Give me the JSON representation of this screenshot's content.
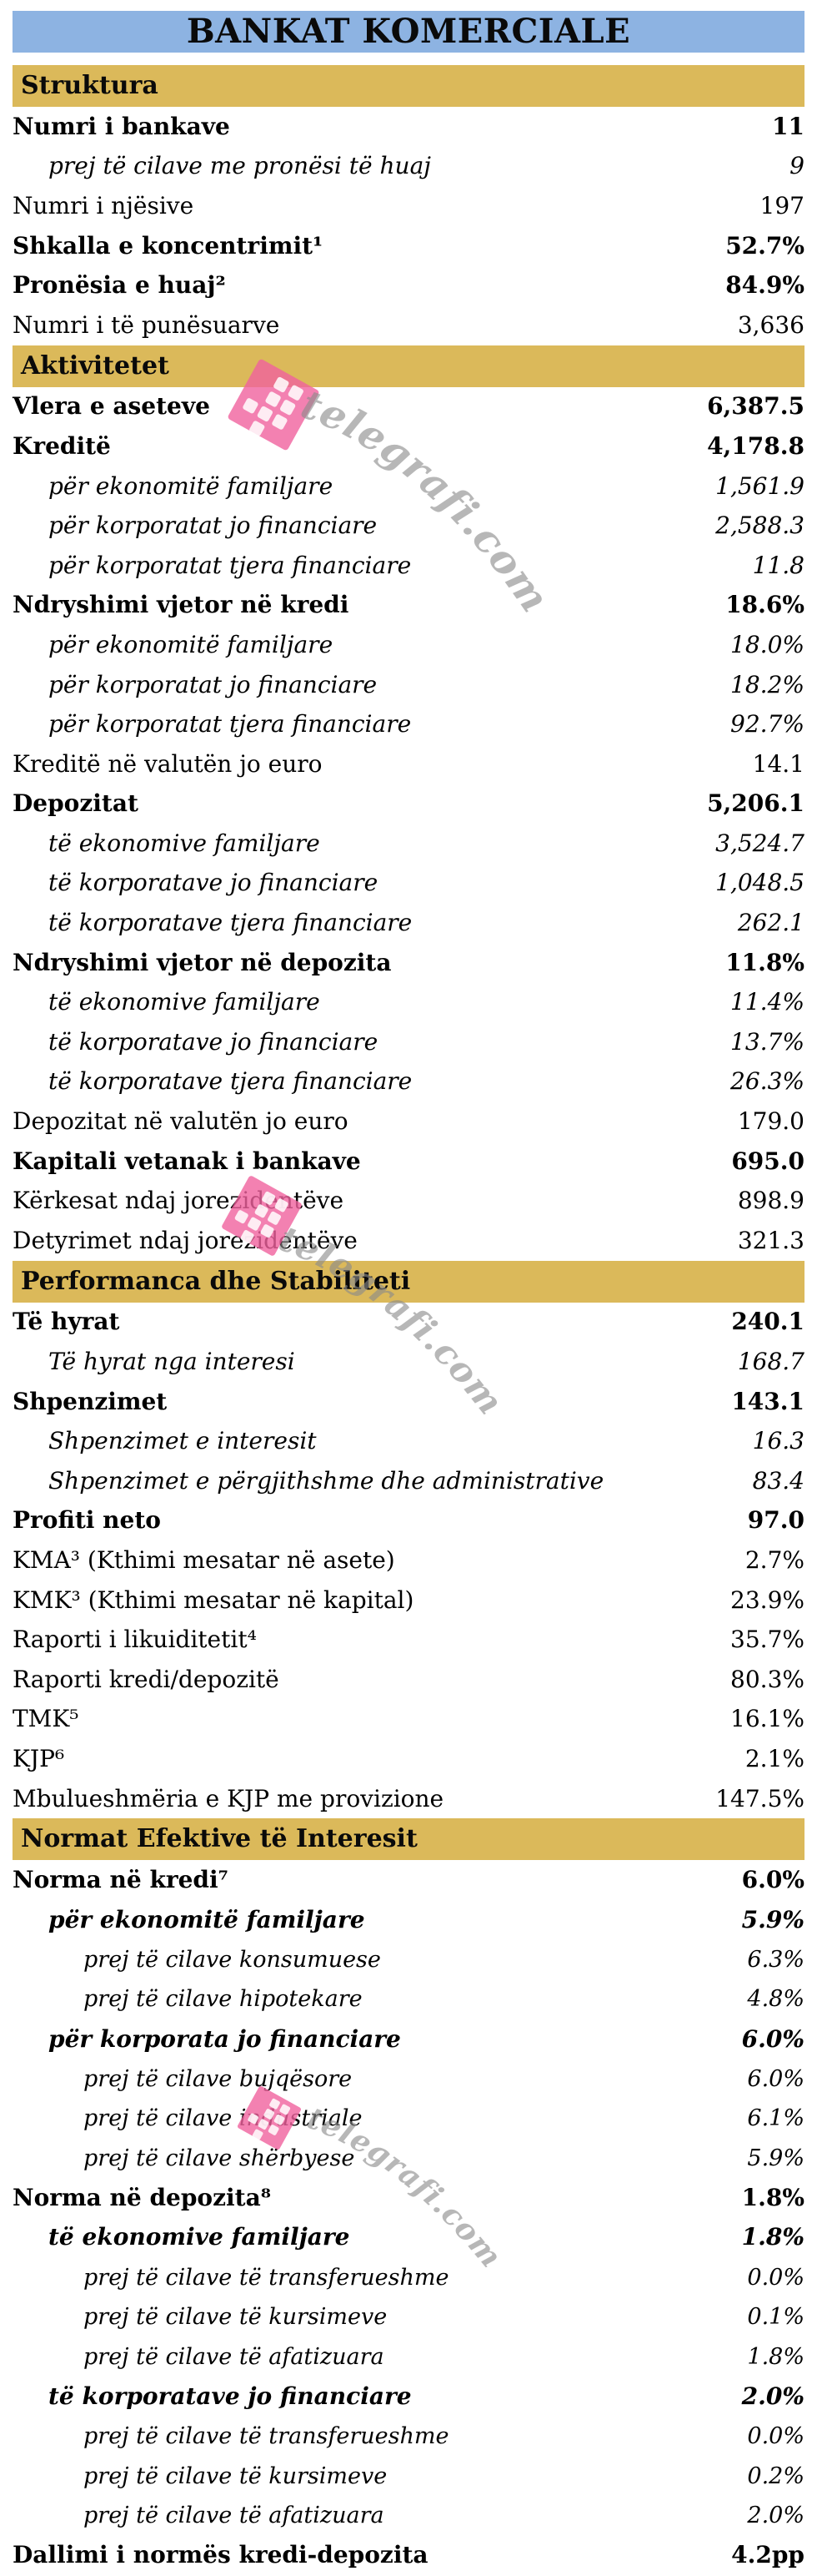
{
  "title": "BANKAT KOMERCIALE",
  "watermark": {
    "text": "telegrafi.com"
  },
  "colors": {
    "title_band": "#8db3e2",
    "section_band": "#dbb95a",
    "watermark_pink": "#f0619e",
    "watermark_gray": "#8a8a8a"
  },
  "sections": [
    {
      "header": "Struktura",
      "rows": [
        {
          "label": "Numri i bankave",
          "value": "11",
          "em": "bold",
          "indent": 0
        },
        {
          "label": "prej të cilave me pronësi të huaj",
          "value": "9",
          "em": "italic",
          "indent": 1
        },
        {
          "label": "Numri i njësive",
          "value": "197",
          "em": "plain",
          "indent": 0
        },
        {
          "label": "Shkalla e koncentrimit¹",
          "value": "52.7%",
          "em": "bold",
          "indent": 0
        },
        {
          "label": "Pronësia e huaj²",
          "value": "84.9%",
          "em": "bold",
          "indent": 0
        },
        {
          "label": "Numri i të punësuarve",
          "value": "3,636",
          "em": "plain",
          "indent": 0
        }
      ]
    },
    {
      "header": "Aktivitetet",
      "rows": [
        {
          "label": "Vlera e aseteve",
          "value": "6,387.5",
          "em": "bold",
          "indent": 0
        },
        {
          "label": "Kreditë",
          "value": "4,178.8",
          "em": "bold",
          "indent": 0
        },
        {
          "label": "për ekonomitë familjare",
          "value": "1,561.9",
          "em": "italic",
          "indent": 1
        },
        {
          "label": "për korporatat jo financiare",
          "value": "2,588.3",
          "em": "italic",
          "indent": 1
        },
        {
          "label": "për korporatat tjera financiare",
          "value": "11.8",
          "em": "italic",
          "indent": 1
        },
        {
          "label": "Ndryshimi vjetor në kredi",
          "value": "18.6%",
          "em": "bold",
          "indent": 0
        },
        {
          "label": "për ekonomitë familjare",
          "value": "18.0%",
          "em": "italic",
          "indent": 1
        },
        {
          "label": "për korporatat jo financiare",
          "value": "18.2%",
          "em": "italic",
          "indent": 1
        },
        {
          "label": "për korporatat tjera financiare",
          "value": "92.7%",
          "em": "italic",
          "indent": 1
        },
        {
          "label": "Kreditë në valutën jo euro",
          "value": "14.1",
          "em": "plain",
          "indent": 0
        },
        {
          "label": "Depozitat",
          "value": "5,206.1",
          "em": "bold",
          "indent": 0
        },
        {
          "label": "të ekonomive familjare",
          "value": "3,524.7",
          "em": "italic",
          "indent": 1
        },
        {
          "label": "të korporatave jo financiare",
          "value": "1,048.5",
          "em": "italic",
          "indent": 1
        },
        {
          "label": "të korporatave tjera financiare",
          "value": "262.1",
          "em": "italic",
          "indent": 1
        },
        {
          "label": "Ndryshimi vjetor në depozita",
          "value": "11.8%",
          "em": "bold",
          "indent": 0
        },
        {
          "label": "të ekonomive familjare",
          "value": "11.4%",
          "em": "italic",
          "indent": 1
        },
        {
          "label": "të korporatave jo financiare",
          "value": "13.7%",
          "em": "italic",
          "indent": 1
        },
        {
          "label": "të korporatave tjera financiare",
          "value": "26.3%",
          "em": "italic",
          "indent": 1
        },
        {
          "label": "Depozitat në valutën jo euro",
          "value": "179.0",
          "em": "plain",
          "indent": 0
        },
        {
          "label": "Kapitali vetanak i bankave",
          "value": "695.0",
          "em": "bold",
          "indent": 0
        },
        {
          "label": "Kërkesat ndaj jorezidentëve",
          "value": "898.9",
          "em": "plain",
          "indent": 0
        },
        {
          "label": "Detyrimet ndaj jorezidentëve",
          "value": "321.3",
          "em": "plain",
          "indent": 0
        }
      ]
    },
    {
      "header": "Performanca dhe Stabiliteti",
      "rows": [
        {
          "label": "Të hyrat",
          "value": "240.1",
          "em": "bold",
          "indent": 0
        },
        {
          "label": "Të hyrat nga interesi",
          "value": "168.7",
          "em": "italic",
          "indent": 1
        },
        {
          "label": "Shpenzimet",
          "value": "143.1",
          "em": "bold",
          "indent": 0
        },
        {
          "label": "Shpenzimet e interesit",
          "value": "16.3",
          "em": "italic",
          "indent": 1
        },
        {
          "label": "Shpenzimet e përgjithshme dhe administrative",
          "value": "83.4",
          "em": "italic",
          "indent": 1
        },
        {
          "label": "Profiti neto",
          "value": "97.0",
          "em": "bold",
          "indent": 0
        },
        {
          "label": "KMA³ (Kthimi mesatar në asete)",
          "value": "2.7%",
          "em": "plain",
          "indent": 0
        },
        {
          "label": "KMK³ (Kthimi mesatar në kapital)",
          "value": "23.9%",
          "em": "plain",
          "indent": 0
        },
        {
          "label": "Raporti i likuiditetit⁴",
          "value": "35.7%",
          "em": "plain",
          "indent": 0
        },
        {
          "label": "Raporti kredi/depozitë",
          "value": "80.3%",
          "em": "plain",
          "indent": 0
        },
        {
          "label": "TMK⁵",
          "value": "16.1%",
          "em": "plain",
          "indent": 0
        },
        {
          "label": "KJP⁶",
          "value": "2.1%",
          "em": "plain",
          "indent": 0
        },
        {
          "label": "Mbulueshmëria e KJP me provizione",
          "value": "147.5%",
          "em": "plain",
          "indent": 0
        }
      ]
    },
    {
      "header": "Normat Efektive të Interesit",
      "rows": [
        {
          "label": "Norma në kredi⁷",
          "value": "6.0%",
          "em": "bold",
          "indent": 0
        },
        {
          "label": "për ekonomitë familjare",
          "value": "5.9%",
          "em": "bolditalic",
          "indent": 1
        },
        {
          "label": "prej të cilave konsumuese",
          "value": "6.3%",
          "em": "italic",
          "indent": 2
        },
        {
          "label": "prej të cilave hipotekare",
          "value": "4.8%",
          "em": "italic",
          "indent": 2
        },
        {
          "label": "për korporata jo financiare",
          "value": "6.0%",
          "em": "bolditalic",
          "indent": 1
        },
        {
          "label": "prej të cilave bujqësore",
          "value": "6.0%",
          "em": "italic",
          "indent": 2
        },
        {
          "label": "prej të cilave industriale",
          "value": "6.1%",
          "em": "italic",
          "indent": 2
        },
        {
          "label": "prej të cilave shërbyese",
          "value": "5.9%",
          "em": "italic",
          "indent": 2
        },
        {
          "label": "Norma në depozita⁸",
          "value": "1.8%",
          "em": "bold",
          "indent": 0
        },
        {
          "label": "të ekonomive familjare",
          "value": "1.8%",
          "em": "bolditalic",
          "indent": 1
        },
        {
          "label": "prej të cilave të transferueshme",
          "value": "0.0%",
          "em": "italic",
          "indent": 2
        },
        {
          "label": "prej të cilave të kursimeve",
          "value": "0.1%",
          "em": "italic",
          "indent": 2
        },
        {
          "label": "prej të cilave të afatizuara",
          "value": "1.8%",
          "em": "italic",
          "indent": 2
        },
        {
          "label": "të korporatave jo financiare",
          "value": "2.0%",
          "em": "bolditalic",
          "indent": 1
        },
        {
          "label": "prej të cilave të transferueshme",
          "value": "0.0%",
          "em": "italic",
          "indent": 2
        },
        {
          "label": "prej të cilave të kursimeve",
          "value": "0.2%",
          "em": "italic",
          "indent": 2
        },
        {
          "label": "prej të cilave të afatizuara",
          "value": "2.0%",
          "em": "italic",
          "indent": 2
        },
        {
          "label": "Dallimi i normës kredi-depozita",
          "value": "4.2pp",
          "em": "bold",
          "indent": 0
        }
      ]
    }
  ]
}
